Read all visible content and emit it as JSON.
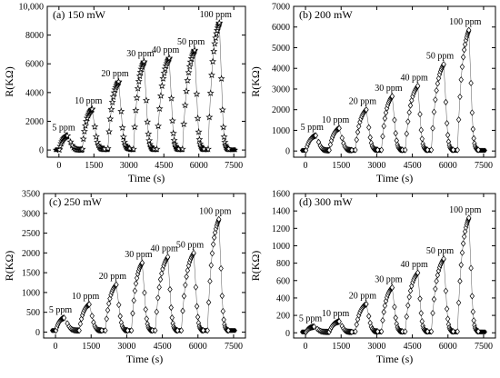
{
  "chart_data": [
    {
      "type": "scatter",
      "title": "(a) 150 mW",
      "xlabel": "Time (s)",
      "ylabel": "R(KΩ)",
      "xlim": [
        -500,
        8000
      ],
      "ylim": [
        -500,
        10000
      ],
      "xticks": [
        0,
        1500,
        3000,
        4500,
        6000,
        7500
      ],
      "yticks": [
        0,
        2000,
        4000,
        6000,
        8000,
        10000
      ],
      "ytick_labels": [
        "0",
        "2000",
        "4000",
        "6000",
        "8000",
        "10,000"
      ],
      "marker": "star",
      "series": [
        {
          "label": "5 ppm",
          "start": 20,
          "peak_x": 360,
          "peak": 1000,
          "end": 980,
          "tail": 10
        },
        {
          "label": "10 ppm",
          "start": 1000,
          "peak_x": 1420,
          "peak": 2850,
          "end": 1950,
          "tail": 60
        },
        {
          "label": "20 ppm",
          "start": 2100,
          "peak_x": 2560,
          "peak": 4750,
          "end": 3040,
          "tail": 100
        },
        {
          "label": "30 ppm",
          "start": 3200,
          "peak_x": 3650,
          "peak": 6150,
          "end": 4080,
          "tail": 60
        },
        {
          "label": "40 ppm",
          "start": 4200,
          "peak_x": 4730,
          "peak": 6400,
          "end": 5140,
          "tail": 60
        },
        {
          "label": "50 ppm",
          "start": 5300,
          "peak_x": 5820,
          "peak": 6950,
          "end": 6220,
          "tail": 60
        },
        {
          "label": "100 ppm",
          "start": 6400,
          "peak_x": 6880,
          "peak": 8850,
          "end": 7280,
          "tail": 60
        }
      ]
    },
    {
      "type": "scatter",
      "title": "(b) 200 mW",
      "xlabel": "Time (s)",
      "ylabel": "R(KΩ)",
      "xlim": [
        -500,
        8000
      ],
      "ylim": [
        -300,
        7000
      ],
      "xticks": [
        0,
        1500,
        3000,
        4500,
        6000,
        7500
      ],
      "yticks": [
        0,
        1000,
        2000,
        3000,
        4000,
        5000,
        6000,
        7000
      ],
      "ytick_labels": [
        "0",
        "1000",
        "2000",
        "3000",
        "4000",
        "5000",
        "6000",
        "7000"
      ],
      "marker": "diamond",
      "series": [
        {
          "label": "5 ppm",
          "start": 20,
          "peak_x": 430,
          "peak": 750,
          "end": 980,
          "tail": 30
        },
        {
          "label": "10 ppm",
          "start": 1000,
          "peak_x": 1420,
          "peak": 1100,
          "end": 1950,
          "tail": 40
        },
        {
          "label": "20 ppm",
          "start": 2100,
          "peak_x": 2560,
          "peak": 2000,
          "end": 3040,
          "tail": 50
        },
        {
          "label": "30 ppm",
          "start": 3200,
          "peak_x": 3650,
          "peak": 2650,
          "end": 4080,
          "tail": 50
        },
        {
          "label": "40 ppm",
          "start": 4200,
          "peak_x": 4730,
          "peak": 3150,
          "end": 5140,
          "tail": 50
        },
        {
          "label": "50 ppm",
          "start": 5300,
          "peak_x": 5820,
          "peak": 4200,
          "end": 6220,
          "tail": 50
        },
        {
          "label": "100 ppm",
          "start": 6400,
          "peak_x": 6880,
          "peak": 5850,
          "end": 7280,
          "tail": 50
        }
      ]
    },
    {
      "type": "scatter",
      "title": "(c) 250 mW",
      "xlabel": "Time (s)",
      "ylabel": "R(KΩ)",
      "xlim": [
        -500,
        8000
      ],
      "ylim": [
        -150,
        3500
      ],
      "xticks": [
        0,
        1500,
        3000,
        4500,
        6000,
        7500
      ],
      "yticks": [
        0,
        500,
        1000,
        1500,
        2000,
        2500,
        3000,
        3500
      ],
      "ytick_labels": [
        "0",
        "500",
        "1000",
        "1500",
        "2000",
        "2500",
        "3000",
        "3500"
      ],
      "marker": "diamond",
      "series": [
        {
          "label": "5 ppm",
          "start": 20,
          "peak_x": 360,
          "peak": 360,
          "end": 980,
          "tail": 40
        },
        {
          "label": "10 ppm",
          "start": 1000,
          "peak_x": 1420,
          "peak": 700,
          "end": 1950,
          "tail": 40
        },
        {
          "label": "20 ppm",
          "start": 2100,
          "peak_x": 2560,
          "peak": 1200,
          "end": 3040,
          "tail": 40
        },
        {
          "label": "30 ppm",
          "start": 3200,
          "peak_x": 3650,
          "peak": 1750,
          "end": 4080,
          "tail": 40
        },
        {
          "label": "40 ppm",
          "start": 4200,
          "peak_x": 4730,
          "peak": 1900,
          "end": 5140,
          "tail": 40
        },
        {
          "label": "50 ppm",
          "start": 5300,
          "peak_x": 5820,
          "peak": 2000,
          "end": 6220,
          "tail": 40
        },
        {
          "label": "100 ppm",
          "start": 6400,
          "peak_x": 6880,
          "peak": 2850,
          "end": 7280,
          "tail": 40
        }
      ]
    },
    {
      "type": "scatter",
      "title": "(d) 300 mW",
      "xlabel": "Time (s)",
      "ylabel": "R(KΩ)",
      "xlim": [
        -500,
        8000
      ],
      "ylim": [
        -60,
        1600
      ],
      "xticks": [
        0,
        1500,
        3000,
        4500,
        6000,
        7500
      ],
      "yticks": [
        0,
        200,
        400,
        600,
        800,
        1000,
        1200,
        1400,
        1600
      ],
      "ytick_labels": [
        "0",
        "200",
        "400",
        "600",
        "800",
        "1000",
        "1200",
        "1400",
        "1600"
      ],
      "marker": "diamond",
      "series": [
        {
          "label": "5 ppm",
          "start": 20,
          "peak_x": 360,
          "peak": 70,
          "end": 980,
          "tail": 10
        },
        {
          "label": "10 ppm",
          "start": 1000,
          "peak_x": 1420,
          "peak": 130,
          "end": 1950,
          "tail": 10
        },
        {
          "label": "20 ppm",
          "start": 2100,
          "peak_x": 2560,
          "peak": 330,
          "end": 3040,
          "tail": 15
        },
        {
          "label": "30 ppm",
          "start": 3200,
          "peak_x": 3650,
          "peak": 520,
          "end": 4080,
          "tail": 15
        },
        {
          "label": "40 ppm",
          "start": 4200,
          "peak_x": 4730,
          "peak": 690,
          "end": 5140,
          "tail": 15
        },
        {
          "label": "50 ppm",
          "start": 5300,
          "peak_x": 5820,
          "peak": 850,
          "end": 6220,
          "tail": 15
        },
        {
          "label": "100 ppm",
          "start": 6400,
          "peak_x": 6880,
          "peak": 1320,
          "end": 7280,
          "tail": 15
        }
      ]
    }
  ]
}
